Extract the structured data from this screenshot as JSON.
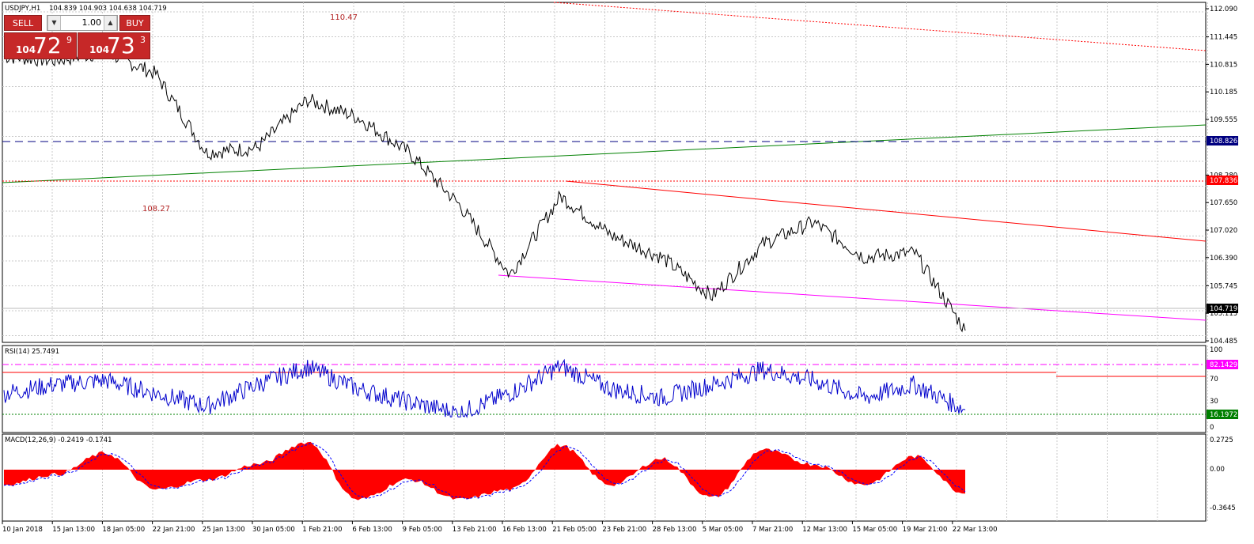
{
  "header": {
    "symbol_line": "USDJPY,H1",
    "ohlc": "104.839 104.903 104.638 104.719"
  },
  "trade_panel": {
    "sell_label": "SELL",
    "buy_label": "BUY",
    "lot": "1.00",
    "sell": {
      "small": "104",
      "big": "72",
      "pip": "9"
    },
    "buy": {
      "small": "104",
      "big": "73",
      "pip": "3"
    }
  },
  "annotations": {
    "high_label": "110.47",
    "mid_label": "108.27"
  },
  "price_axis": {
    "ticks": [
      "112.090",
      "111.445",
      "110.815",
      "110.185",
      "109.555",
      "108.280",
      "107.650",
      "107.020",
      "106.390",
      "105.745",
      "105.115",
      "104.485"
    ],
    "markers": {
      "h_line": "108.826",
      "res_line": "107.836",
      "last": "104.719"
    }
  },
  "rsi": {
    "label": "RSI(14) 25.7491",
    "ticks": [
      "100",
      "70",
      "30",
      "0"
    ],
    "upper_marker": "82.1429",
    "lower_marker": "16.1972"
  },
  "macd": {
    "label": "MACD(12,26,9) -0.2419 -0.1741",
    "ticks": [
      "0.2725",
      "0.00",
      "-0.3645"
    ]
  },
  "time_axis": [
    "10 Jan 2018",
    "15 Jan 13:00",
    "18 Jan 05:00",
    "22 Jan 21:00",
    "25 Jan 13:00",
    "30 Jan 05:00",
    "1 Feb 21:00",
    "6 Feb 13:00",
    "9 Feb 05:00",
    "13 Feb 21:00",
    "16 Feb 13:00",
    "21 Feb 05:00",
    "23 Feb 21:00",
    "28 Feb 13:00",
    "5 Mar 05:00",
    "7 Mar 21:00",
    "12 Mar 13:00",
    "15 Mar 05:00",
    "19 Mar 21:00",
    "22 Mar 13:00"
  ],
  "colors": {
    "price": "#000000",
    "rsi": "#0000cc",
    "macd_hist": "#ff0000",
    "macd_signal": "#0000ff",
    "trend_green": "#008000",
    "trend_red": "#ff0000",
    "magenta": "#ff00ff",
    "dash_navy": "#000080",
    "grid": "#c8c8c8"
  },
  "chart_data": {
    "type": "line",
    "title": "USDJPY,H1",
    "ylim": [
      104.485,
      112.09
    ],
    "price_path": [
      [
        "10 Jan 2018",
        111.0
      ],
      [
        "15 Jan 13:00",
        110.9
      ],
      [
        "18 Jan 05:00",
        111.1
      ],
      [
        "22 Jan 21:00",
        110.6
      ],
      [
        "25 Jan 13:00",
        108.8
      ],
      [
        "30 Jan 05:00",
        108.9
      ],
      [
        "1 Feb 21:00",
        110.0
      ],
      [
        "6 Feb 13:00",
        109.6
      ],
      [
        "9 Feb 05:00",
        108.8
      ],
      [
        "13 Feb 21:00",
        107.6
      ],
      [
        "16 Feb 13:00",
        106.0
      ],
      [
        "21 Feb 05:00",
        107.8
      ],
      [
        "23 Feb 21:00",
        106.9
      ],
      [
        "28 Feb 13:00",
        106.4
      ],
      [
        "5 Mar 05:00",
        105.5
      ],
      [
        "7 Mar 21:00",
        106.7
      ],
      [
        "12 Mar 13:00",
        107.2
      ],
      [
        "15 Mar 05:00",
        106.4
      ],
      [
        "19 Mar 21:00",
        106.5
      ],
      [
        "22 Mar 13:00",
        104.72
      ]
    ],
    "rsi_path": [
      [
        "10 Jan 2018",
        45
      ],
      [
        "15 Jan 13:00",
        55
      ],
      [
        "18 Jan 05:00",
        60
      ],
      [
        "22 Jan 21:00",
        45
      ],
      [
        "25 Jan 13:00",
        30
      ],
      [
        "30 Jan 05:00",
        55
      ],
      [
        "1 Feb 21:00",
        75
      ],
      [
        "6 Feb 13:00",
        50
      ],
      [
        "9 Feb 05:00",
        35
      ],
      [
        "13 Feb 21:00",
        22
      ],
      [
        "16 Feb 13:00",
        45
      ],
      [
        "21 Feb 05:00",
        76
      ],
      [
        "23 Feb 21:00",
        50
      ],
      [
        "28 Feb 13:00",
        40
      ],
      [
        "5 Mar 05:00",
        55
      ],
      [
        "7 Mar 21:00",
        72
      ],
      [
        "12 Mar 13:00",
        60
      ],
      [
        "15 Mar 05:00",
        40
      ],
      [
        "19 Mar 21:00",
        55
      ],
      [
        "22 Mar 13:00",
        26
      ]
    ],
    "macd_path": [
      [
        "10 Jan 2018",
        -0.15
      ],
      [
        "15 Jan 13:00",
        -0.05
      ],
      [
        "18 Jan 05:00",
        0.15
      ],
      [
        "22 Jan 21:00",
        -0.2
      ],
      [
        "25 Jan 13:00",
        -0.1
      ],
      [
        "30 Jan 05:00",
        0.05
      ],
      [
        "1 Feb 21:00",
        0.25
      ],
      [
        "6 Feb 13:00",
        -0.3
      ],
      [
        "9 Feb 05:00",
        -0.1
      ],
      [
        "13 Feb 21:00",
        -0.3
      ],
      [
        "16 Feb 13:00",
        -0.2
      ],
      [
        "21 Feb 05:00",
        0.22
      ],
      [
        "23 Feb 21:00",
        -0.15
      ],
      [
        "28 Feb 13:00",
        0.1
      ],
      [
        "5 Mar 05:00",
        -0.28
      ],
      [
        "7 Mar 21:00",
        0.18
      ],
      [
        "12 Mar 13:00",
        0.05
      ],
      [
        "15 Mar 05:00",
        -0.15
      ],
      [
        "19 Mar 21:00",
        0.12
      ],
      [
        "22 Mar 13:00",
        -0.24
      ]
    ]
  }
}
